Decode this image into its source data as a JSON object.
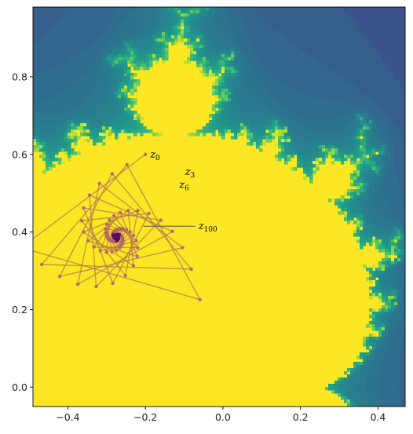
{
  "chart_data": {
    "type": "scatter",
    "title": "",
    "xlabel": "",
    "ylabel": "",
    "xlim": [
      -0.49,
      0.47
    ],
    "ylim": [
      -0.05,
      0.98
    ],
    "grid": false,
    "xticks": [
      -0.4,
      -0.2,
      0.0,
      0.2,
      0.4
    ],
    "xtick_labels": [
      "−0.4",
      "−0.2",
      "0.0",
      "0.2",
      "0.4"
    ],
    "yticks": [
      0.0,
      0.2,
      0.4,
      0.6,
      0.8
    ],
    "ytick_labels": [
      "0.0",
      "0.2",
      "0.4",
      "0.6",
      "0.8"
    ],
    "background": "mandelbrot-set-escape-time-viridis",
    "colors": {
      "set": "#fde725",
      "orbit_line": "#b47a4a",
      "orbit_point": "#b05a72",
      "orbit_end": "#5a0a66"
    },
    "orbit_point_count": 101,
    "orbit_start": {
      "x": -0.2,
      "y": 0.6,
      "label": "z",
      "index": "0"
    },
    "orbit_limit": {
      "x": -0.205,
      "y": 0.415
    },
    "annotations": [
      {
        "label": "z",
        "index": "0",
        "x": -0.2,
        "y": 0.6
      },
      {
        "label": "z",
        "index": "3",
        "x": -0.11,
        "y": 0.555
      },
      {
        "label": "z",
        "index": "6",
        "x": -0.125,
        "y": 0.522
      },
      {
        "label": "z",
        "index": "100",
        "x": -0.205,
        "y": 0.415
      }
    ]
  }
}
